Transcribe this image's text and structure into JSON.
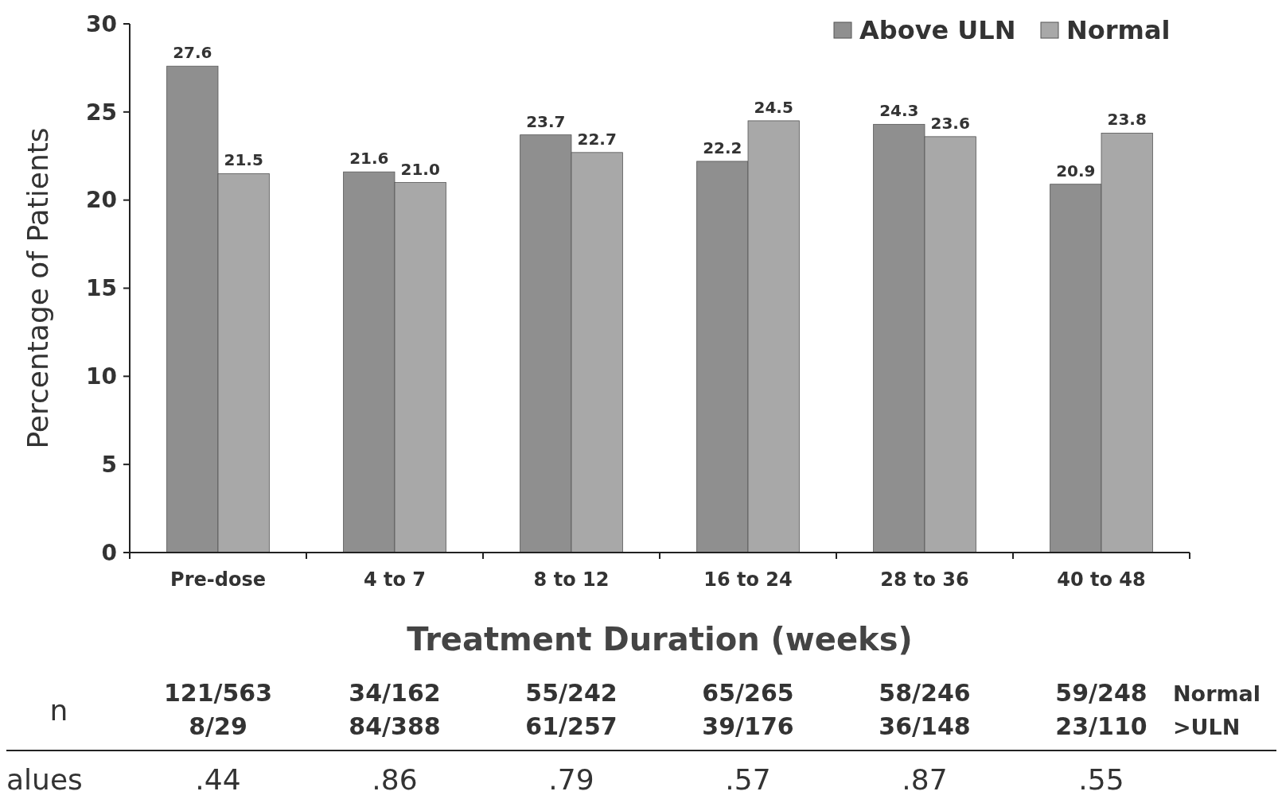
{
  "chart_data": {
    "type": "bar",
    "ylabel": "Percentage of Patients",
    "xlabel": "Treatment Duration (weeks)",
    "categories": [
      "Pre-dose",
      "4 to 7",
      "8 to 12",
      "16 to 24",
      "28 to 36",
      "40 to 48"
    ],
    "series": [
      {
        "name": "Above ULN",
        "color": "#8f8f8f",
        "values": [
          27.6,
          21.6,
          23.7,
          22.2,
          24.3,
          20.9
        ],
        "value_labels": [
          "27.6",
          "21.6",
          "23.7",
          "22.2",
          "24.3",
          "20.9"
        ]
      },
      {
        "name": "Normal",
        "color": "#a8a8a8",
        "values": [
          21.5,
          21.0,
          22.7,
          24.5,
          23.6,
          23.8
        ],
        "value_labels": [
          "21.5",
          "21.0",
          "22.7",
          "24.5",
          "23.6",
          "23.8"
        ]
      }
    ],
    "ylim": [
      0,
      30
    ],
    "yticks": [
      0,
      5,
      10,
      15,
      20,
      25,
      30
    ],
    "legend": "top right",
    "grid": false,
    "annotations": [
      "n",
      "121/563",
      "34/162",
      "55/242",
      "65/265",
      "58/246",
      "59/248",
      "8/29",
      "84/388",
      "61/257",
      "39/176",
      "36/148",
      "23/110",
      "Normal",
      ">ULN",
      "alues",
      ".44",
      ".86",
      ".79",
      ".57",
      ".87",
      ".55"
    ]
  }
}
